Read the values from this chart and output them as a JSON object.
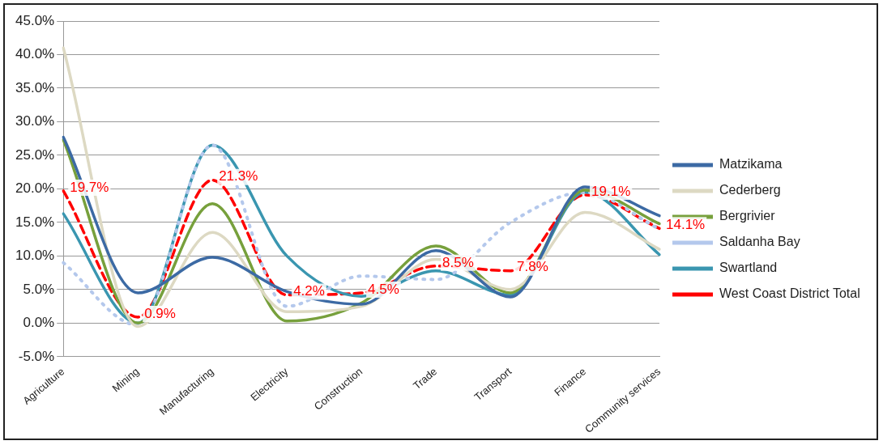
{
  "chart_data": {
    "type": "line",
    "categories": [
      "Agriculture",
      "Mining",
      "Manufacturing",
      "Electricity",
      "Construction",
      "Trade",
      "Transport",
      "Finance",
      "Community services"
    ],
    "series": [
      {
        "name": "Matzikama",
        "color": "#3c6aa4",
        "values": [
          27.7,
          4.5,
          9.8,
          4.7,
          2.8,
          10.8,
          3.9,
          20.3,
          16
        ]
      },
      {
        "name": "Cederberg",
        "color": "#ddd9c3",
        "values": [
          41,
          -0.5,
          13.5,
          1.7,
          2.5,
          9.5,
          5,
          16.5,
          11
        ]
      },
      {
        "name": "Bergrivier",
        "color": "#77a03c",
        "values": [
          27.3,
          0,
          17.8,
          0.3,
          3,
          11.5,
          4.5,
          19.8,
          14.8
        ]
      },
      {
        "name": "Saldanha Bay",
        "color": "#b4c8ec",
        "line_style": "dotted",
        "values": [
          9,
          -0.3,
          26.5,
          2.5,
          7,
          6.5,
          15,
          19.5,
          14
        ]
      },
      {
        "name": "Swartland",
        "color": "#3a96b0",
        "values": [
          16.3,
          0,
          26.5,
          10,
          4,
          7.8,
          4.2,
          19.5,
          10.2
        ]
      },
      {
        "name": "West Coast District Total",
        "color": "#ff0000",
        "line_style": "dashed",
        "values": [
          19.7,
          0.9,
          21.3,
          4.2,
          4.5,
          8.5,
          7.8,
          19.1,
          14.1
        ],
        "value_labels": [
          "19.7%",
          "0.9%",
          "21.3%",
          "4.2%",
          "4.5%",
          "8.5%",
          "7.8%",
          "19.1%",
          "14.1%"
        ]
      }
    ],
    "ylim": [
      -5,
      45
    ],
    "yticks": [
      {
        "value": -5,
        "label": "-5.0%"
      },
      {
        "value": 0,
        "label": "0.0%"
      },
      {
        "value": 5,
        "label": "5.0%"
      },
      {
        "value": 10,
        "label": "10.0%"
      },
      {
        "value": 15,
        "label": "15.0%"
      },
      {
        "value": 20,
        "label": "20.0%"
      },
      {
        "value": 25,
        "label": "25.0%"
      },
      {
        "value": 30,
        "label": "30.0%"
      },
      {
        "value": 35,
        "label": "35.0%"
      },
      {
        "value": 40,
        "label": "40.0%"
      },
      {
        "value": 45,
        "label": "45.0%"
      }
    ],
    "grid": "y",
    "legend": "right",
    "marker": "none",
    "line_style": "solid"
  }
}
